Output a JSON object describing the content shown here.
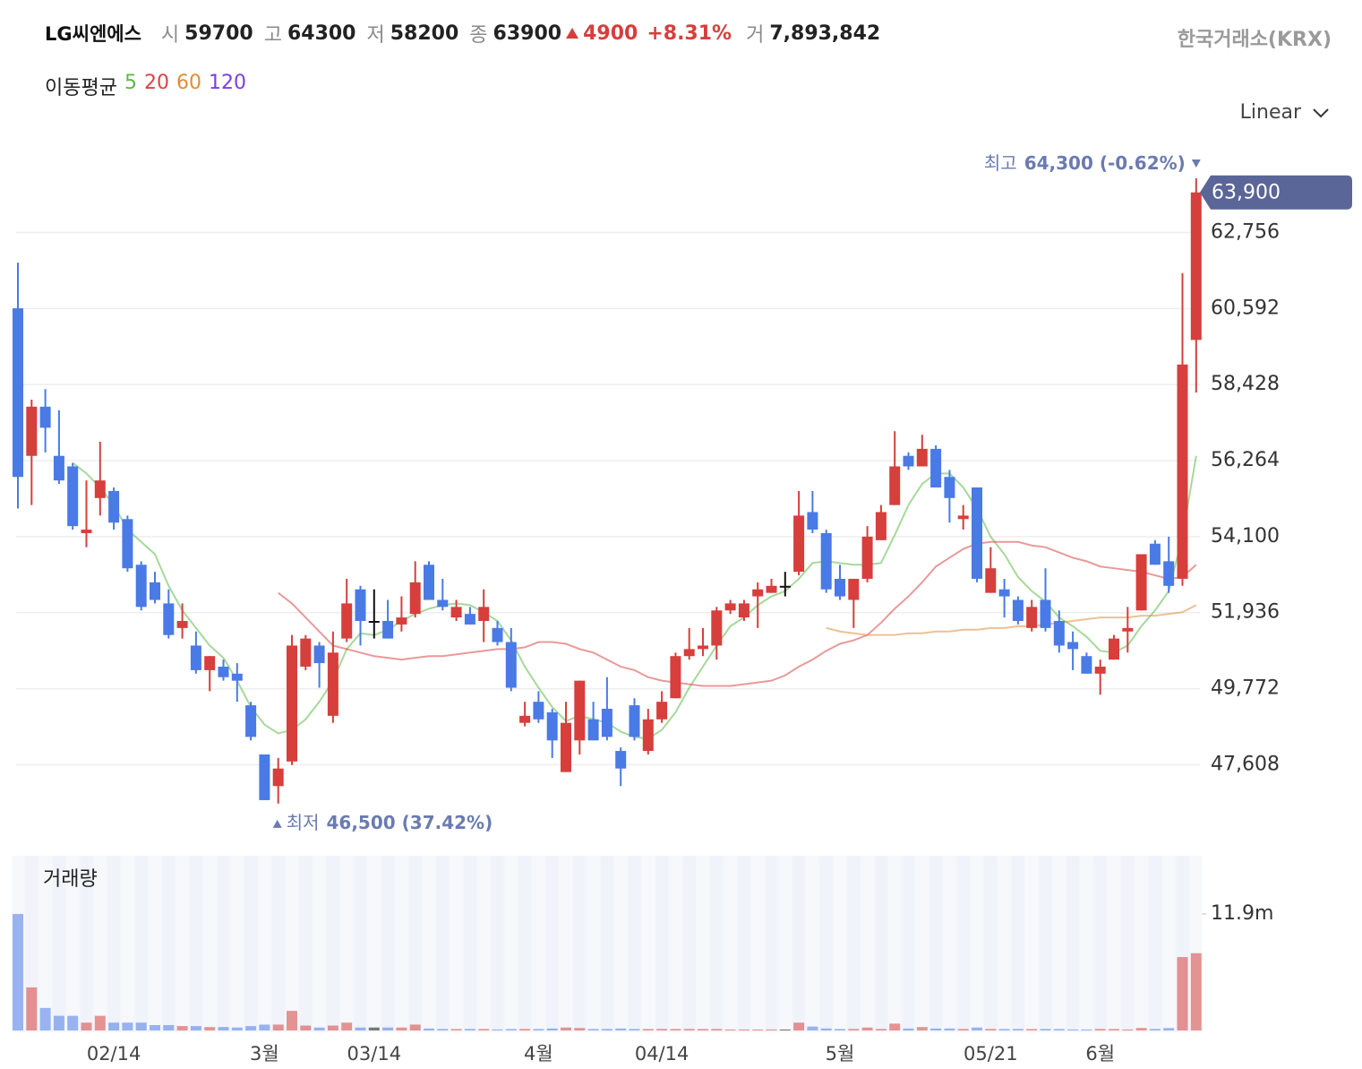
{
  "header": {
    "name": "LG씨엔에스",
    "fields": [
      {
        "label": "시",
        "value": 59700
      },
      {
        "label": "고",
        "value": 64300
      },
      {
        "label": "저",
        "value": 58200
      },
      {
        "label": "종",
        "value": 63900
      }
    ],
    "change": 4900,
    "change_pct": "+8.31%",
    "volume_label": "거",
    "volume": "7,893,842",
    "exchange": "한국거래소(KRX)",
    "scale_selector": "Linear"
  },
  "chart_data": {
    "type": "candlestick",
    "legend_title": "이동평균",
    "volume_title": "거래량",
    "up_color": "#d63f3c",
    "down_color": "#4a7ae6",
    "flat_color": "#111111",
    "categories": [
      null,
      null,
      null,
      null,
      null,
      null,
      null,
      "02/14",
      null,
      null,
      null,
      null,
      null,
      null,
      null,
      null,
      null,
      null,
      "3월",
      null,
      null,
      null,
      null,
      null,
      null,
      null,
      "03/14",
      null,
      null,
      null,
      null,
      null,
      null,
      null,
      null,
      null,
      null,
      null,
      "4월",
      null,
      null,
      null,
      null,
      null,
      null,
      null,
      null,
      "04/14",
      null,
      null,
      null,
      null,
      null,
      null,
      null,
      null,
      null,
      null,
      null,
      null,
      "5월",
      null,
      null,
      null,
      null,
      null,
      null,
      null,
      null,
      null,
      null,
      "05/21",
      null,
      null,
      null,
      null,
      null,
      null,
      null,
      "6월",
      null,
      null,
      null,
      null,
      null,
      null,
      null
    ],
    "open": [
      60600,
      56400,
      57800,
      56400,
      56100,
      54200,
      55200,
      55400,
      54600,
      53300,
      52800,
      52200,
      51500,
      51000,
      50300,
      50400,
      50200,
      49300,
      47900,
      47000,
      47700,
      50400,
      51000,
      49000,
      51200,
      52600,
      51700,
      51700,
      51600,
      51900,
      53300,
      52300,
      51800,
      51900,
      51700,
      51500,
      51100,
      48800,
      49400,
      49100,
      47400,
      48300,
      48900,
      49200,
      48000,
      49300,
      48000,
      48900,
      49500,
      50700,
      50900,
      51000,
      52000,
      51800,
      52400,
      52500,
      52700,
      53100,
      54800,
      54200,
      52900,
      52300,
      52900,
      54000,
      55000,
      56400,
      56100,
      56600,
      55800,
      54600,
      55500,
      52500,
      52600,
      52300,
      51500,
      52300,
      51700,
      51100,
      50700,
      50200,
      50600,
      51400,
      52000,
      53900,
      53400,
      52900,
      59700
    ],
    "high": [
      61900,
      58000,
      58300,
      57700,
      56200,
      55700,
      56800,
      55500,
      54700,
      53400,
      53100,
      52600,
      52200,
      51400,
      50700,
      50600,
      50500,
      49400,
      47900,
      47800,
      51300,
      51300,
      51100,
      51400,
      52900,
      52700,
      52600,
      52300,
      52400,
      53400,
      53400,
      52900,
      52300,
      52100,
      52600,
      51700,
      51500,
      49400,
      49700,
      49200,
      49400,
      50000,
      49400,
      50100,
      48100,
      49500,
      49200,
      49700,
      50800,
      51500,
      51500,
      52100,
      52300,
      52300,
      52800,
      52900,
      53100,
      55400,
      55400,
      54300,
      53300,
      52900,
      54400,
      55000,
      57100,
      56500,
      57000,
      56700,
      56000,
      55000,
      55500,
      53800,
      52900,
      52400,
      52300,
      53200,
      52000,
      51400,
      50800,
      50600,
      51300,
      52100,
      53600,
      54000,
      54100,
      61600,
      64300
    ],
    "low": [
      54900,
      55000,
      56500,
      55600,
      54300,
      53800,
      54700,
      54300,
      53100,
      52000,
      52200,
      51200,
      51200,
      50200,
      49700,
      50000,
      49400,
      48300,
      46600,
      46500,
      47600,
      50300,
      49800,
      48800,
      51100,
      51000,
      51200,
      51200,
      51400,
      51800,
      52300,
      52000,
      51700,
      51600,
      51100,
      51000,
      49700,
      48700,
      48800,
      47800,
      47400,
      47900,
      48300,
      48300,
      47000,
      48300,
      47900,
      48800,
      49500,
      50600,
      50700,
      50600,
      51900,
      51700,
      51500,
      52500,
      52400,
      53000,
      54200,
      52500,
      52300,
      51500,
      52800,
      54000,
      55000,
      56000,
      56100,
      55500,
      54500,
      54300,
      52800,
      52500,
      51800,
      51600,
      51400,
      51400,
      50800,
      50300,
      50200,
      49600,
      50600,
      50800,
      52000,
      53300,
      52500,
      52700,
      58200
    ],
    "close": [
      55800,
      57800,
      57200,
      55700,
      54400,
      54300,
      55700,
      54500,
      53200,
      52100,
      52300,
      51300,
      51700,
      50300,
      50700,
      50100,
      50000,
      48400,
      46600,
      47500,
      51000,
      51200,
      50500,
      50800,
      52200,
      51700,
      51700,
      51200,
      51800,
      52800,
      52300,
      52100,
      52100,
      51600,
      52100,
      51100,
      49800,
      49000,
      48900,
      48300,
      48800,
      50000,
      48300,
      48400,
      47500,
      48400,
      48900,
      49400,
      50700,
      50900,
      51000,
      52000,
      52200,
      52200,
      52600,
      52700,
      52700,
      54700,
      54300,
      52600,
      52400,
      52900,
      54100,
      54800,
      56100,
      56100,
      56600,
      55500,
      55200,
      54700,
      52900,
      53200,
      52400,
      51700,
      52100,
      51500,
      51000,
      50900,
      50200,
      50400,
      51200,
      51500,
      53600,
      53300,
      52700,
      59000,
      63900
    ],
    "volume": [
      11900000,
      4400000,
      2300000,
      1500000,
      1500000,
      800000,
      1500000,
      800000,
      800000,
      800000,
      550000,
      550000,
      450000,
      450000,
      350000,
      350000,
      300000,
      450000,
      600000,
      600000,
      2000000,
      500000,
      300000,
      500000,
      800000,
      300000,
      300000,
      300000,
      300000,
      600000,
      200000,
      150000,
      150000,
      150000,
      150000,
      100000,
      150000,
      150000,
      150000,
      200000,
      300000,
      250000,
      150000,
      150000,
      200000,
      150000,
      150000,
      150000,
      150000,
      150000,
      150000,
      150000,
      100000,
      100000,
      100000,
      100000,
      100000,
      800000,
      400000,
      200000,
      150000,
      150000,
      300000,
      150000,
      700000,
      200000,
      350000,
      200000,
      200000,
      150000,
      300000,
      150000,
      150000,
      150000,
      150000,
      150000,
      150000,
      100000,
      100000,
      150000,
      150000,
      100000,
      250000,
      150000,
      250000,
      7500000,
      7893842
    ],
    "series": [
      {
        "name": "5",
        "color": "#5cb947",
        "values": [
          null,
          null,
          null,
          null,
          56200,
          55900,
          55500,
          55000,
          54300,
          53950,
          53600,
          52700,
          52000,
          51500,
          51000,
          50650,
          50000,
          49250,
          48750,
          48500,
          48600,
          48900,
          49400,
          50000,
          50900,
          51350,
          51300,
          51450,
          51700,
          51900,
          52050,
          52150,
          52200,
          52150,
          51950,
          51700,
          51150,
          50400,
          49800,
          49250,
          48850,
          49000,
          48900,
          48800,
          48550,
          48400,
          48350,
          48600,
          49100,
          49800,
          50400,
          51000,
          51550,
          51800,
          52150,
          52400,
          52550,
          52900,
          53350,
          53400,
          53350,
          53300,
          53300,
          53350,
          54150,
          55000,
          55600,
          55900,
          55900,
          55500,
          54900,
          54100,
          53600,
          52950,
          52550,
          52250,
          51800,
          51550,
          51250,
          50850,
          50800,
          51000,
          51550,
          52000,
          52550,
          54100,
          56400
        ]
      },
      {
        "name": "20",
        "color": "#d94545",
        "values": [
          null,
          null,
          null,
          null,
          null,
          null,
          null,
          null,
          null,
          null,
          null,
          null,
          null,
          null,
          null,
          null,
          null,
          null,
          null,
          52500,
          52200,
          51800,
          51400,
          51000,
          50900,
          50800,
          50700,
          50650,
          50600,
          50650,
          50700,
          50700,
          50750,
          50800,
          50850,
          50900,
          50900,
          50950,
          51100,
          51100,
          51050,
          50900,
          50800,
          50600,
          50400,
          50300,
          50100,
          50000,
          49950,
          49900,
          49850,
          49850,
          49850,
          49900,
          49950,
          50000,
          50150,
          50400,
          50600,
          50850,
          51050,
          51150,
          51300,
          51650,
          52050,
          52400,
          52800,
          53250,
          53500,
          53750,
          53900,
          53950,
          53950,
          53950,
          53850,
          53800,
          53650,
          53500,
          53400,
          53250,
          53200,
          53150,
          53100,
          53000,
          52900,
          52950,
          53300
        ]
      },
      {
        "name": "60",
        "color": "#e08c3a",
        "values": [
          null,
          null,
          null,
          null,
          null,
          null,
          null,
          null,
          null,
          null,
          null,
          null,
          null,
          null,
          null,
          null,
          null,
          null,
          null,
          null,
          null,
          null,
          null,
          null,
          null,
          null,
          null,
          null,
          null,
          null,
          null,
          null,
          null,
          null,
          null,
          null,
          null,
          null,
          null,
          null,
          null,
          null,
          null,
          null,
          null,
          null,
          null,
          null,
          null,
          null,
          null,
          null,
          null,
          null,
          null,
          null,
          null,
          null,
          null,
          51500,
          51400,
          51350,
          51300,
          51300,
          51300,
          51350,
          51350,
          51400,
          51400,
          51450,
          51450,
          51500,
          51500,
          51550,
          51550,
          51600,
          51650,
          51700,
          51750,
          51800,
          51800,
          51800,
          51850,
          51850,
          51900,
          51950,
          52150
        ]
      },
      {
        "name": "120",
        "color": "#7a3fe0",
        "values": [
          null,
          null,
          null,
          null,
          null,
          null,
          null,
          null,
          null,
          null,
          null,
          null,
          null,
          null,
          null,
          null,
          null,
          null,
          null,
          null,
          null,
          null,
          null,
          null,
          null,
          null,
          null,
          null,
          null,
          null,
          null,
          null,
          null,
          null,
          null,
          null,
          null,
          null,
          null,
          null,
          null,
          null,
          null,
          null,
          null,
          null,
          null,
          null,
          null,
          null,
          null,
          null,
          null,
          null,
          null,
          null,
          null,
          null,
          null,
          null,
          null,
          null,
          null,
          null,
          null,
          null,
          null,
          null,
          null,
          null,
          null,
          null,
          null,
          null,
          null,
          null,
          null,
          null,
          null,
          null,
          null,
          null,
          null,
          null,
          null,
          null,
          null
        ]
      }
    ],
    "ylim": [
      45400,
      65550
    ],
    "yticks": [
      {
        "value": 47608,
        "label": "47,608"
      },
      {
        "value": 49772,
        "label": "49,772"
      },
      {
        "value": 51936,
        "label": "51,936"
      },
      {
        "value": 54100,
        "label": "54,100"
      },
      {
        "value": 56264,
        "label": "56,264"
      },
      {
        "value": 58428,
        "label": "58,428"
      },
      {
        "value": 60592,
        "label": "60,592"
      },
      {
        "value": 62756,
        "label": "62,756"
      }
    ],
    "volume_ylim": [
      0,
      17850000
    ],
    "volume_yticks": [
      {
        "value": 11900000,
        "label": "11.9m"
      }
    ],
    "grid": true,
    "last_price_label": "63,900",
    "annotations": {
      "max": {
        "label": "최고",
        "text": "64,300 (-0.62%)"
      },
      "min": {
        "label": "최저",
        "text": "46,500 (37.42%)"
      }
    }
  }
}
